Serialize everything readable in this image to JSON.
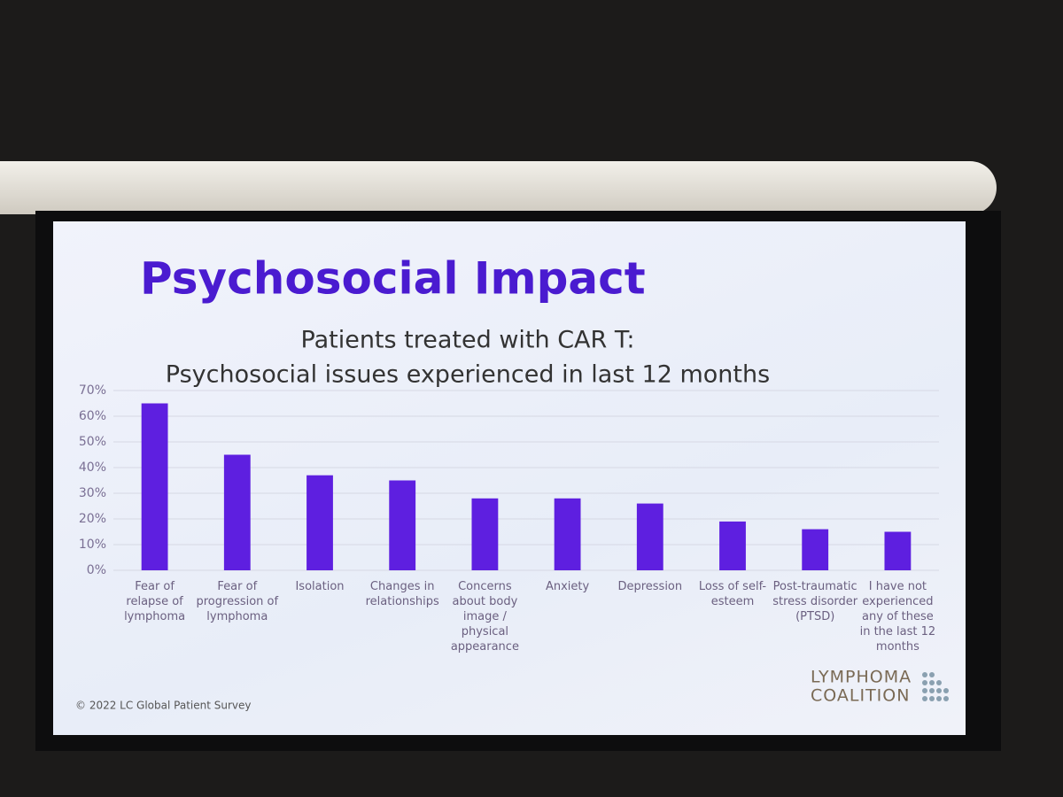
{
  "slide": {
    "heading": "Psychosocial Impact",
    "footer": "© 2022 LC Global Patient Survey",
    "logo": [
      "LYMPHOMA",
      "COALITION"
    ]
  },
  "chart_data": {
    "type": "bar",
    "title": "Patients treated with CAR T:",
    "subtitle": "Psychosocial issues experienced in last 12 months",
    "categories": [
      "Fear of relapse of lymphoma",
      "Fear of progression of lymphoma",
      "Isolation",
      "Changes in relationships",
      "Concerns about body image / physical appearance",
      "Anxiety",
      "Depression",
      "Loss of self-esteem",
      "Post-traumatic stress disorder (PTSD)",
      "I have not experienced any of these in the last 12 months"
    ],
    "values": [
      65,
      45,
      37,
      35,
      28,
      28,
      26,
      19,
      16,
      15
    ],
    "color": "#5e1fe0",
    "ylim": [
      0,
      70
    ],
    "yticks": [
      {
        "value": 0,
        "label": "0%"
      },
      {
        "value": 10,
        "label": "10%"
      },
      {
        "value": 20,
        "label": "20%"
      },
      {
        "value": 30,
        "label": "30%"
      },
      {
        "value": 40,
        "label": "40%"
      },
      {
        "value": 50,
        "label": "50%"
      },
      {
        "value": 60,
        "label": "60%"
      },
      {
        "value": 70,
        "label": "70%"
      }
    ],
    "grid": true
  }
}
